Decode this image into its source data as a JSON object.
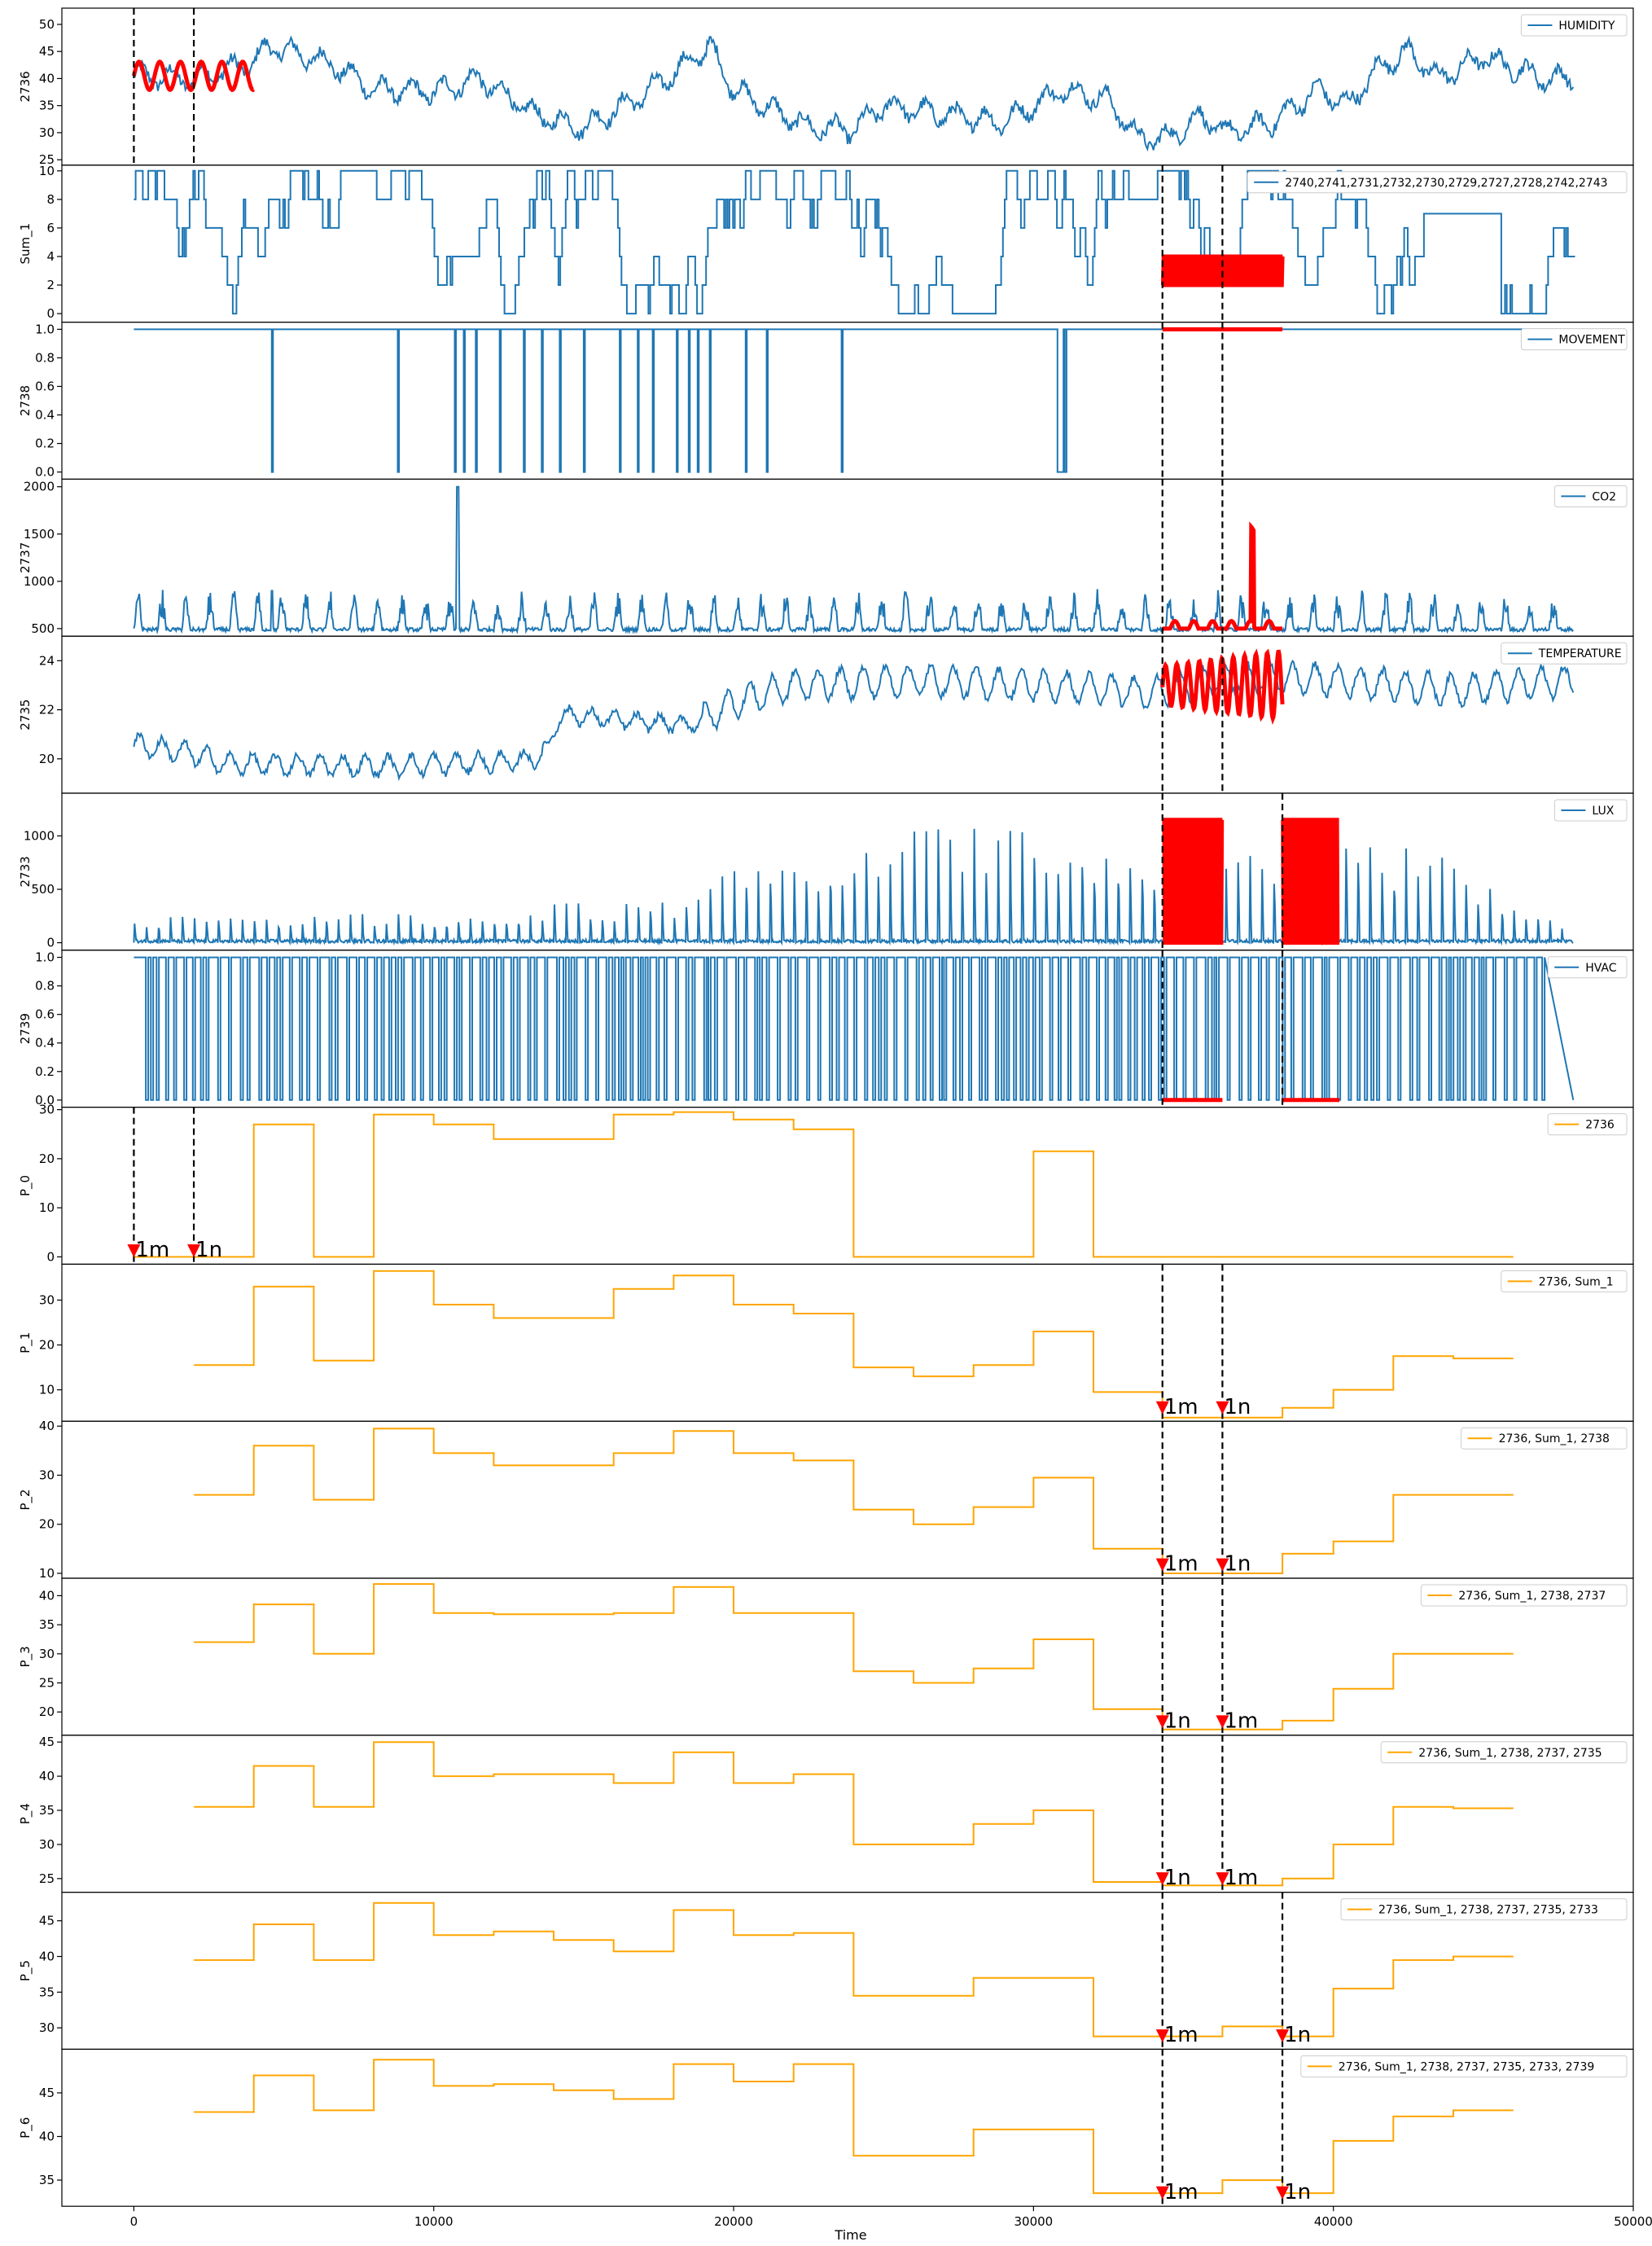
{
  "chart_data": {
    "type": "line",
    "xlabel": "Time",
    "xlim": [
      -2400,
      50000
    ],
    "xticks": [
      0,
      10000,
      20000,
      30000,
      40000,
      50000
    ],
    "xtick_labels": [
      "0",
      "10000",
      "20000",
      "30000",
      "40000",
      "50000"
    ],
    "colors": {
      "signal": "#1f77b4",
      "highlight": "#ff0000",
      "step": "#ffa500",
      "marker": "#ff0000",
      "frame": "#000000"
    },
    "panels": [
      {
        "ylabel": "2736",
        "legend": "HUMIDITY",
        "legend_loc": "upper right",
        "ylim": [
          24,
          53
        ],
        "yticks": [
          25,
          30,
          35,
          40,
          45,
          50
        ],
        "ytick_labels": [
          "25",
          "30",
          "35",
          "40",
          "45",
          "50"
        ],
        "signal": {
          "kind": "humidity"
        },
        "vlines": [
          0,
          2000
        ],
        "highlights": [
          [
            0,
            4000
          ]
        ]
      },
      {
        "ylabel": "Sum_1",
        "legend": "2740,2741,2731,2732,2730,2729,2727,2728,2742,2743",
        "legend_loc": "upper right",
        "ylim": [
          -0.6,
          10.4
        ],
        "yticks": [
          0,
          2,
          4,
          6,
          8,
          10
        ],
        "ytick_labels": [
          "0",
          "2",
          "4",
          "6",
          "8",
          "10"
        ],
        "signal": {
          "kind": "sum"
        },
        "vlines": [
          34300,
          36300
        ],
        "highlights": [
          [
            34300,
            38300
          ]
        ]
      },
      {
        "ylabel": "2738",
        "legend": "MOVEMENT",
        "legend_loc": "upper right",
        "ylim": [
          -0.05,
          1.05
        ],
        "yticks": [
          0,
          0.2,
          0.4,
          0.6,
          0.8,
          1.0
        ],
        "ytick_labels": [
          "0.0",
          "0.2",
          "0.4",
          "0.6",
          "0.8",
          "1.0"
        ],
        "signal": {
          "kind": "movement"
        },
        "vlines": [
          34300,
          36300
        ],
        "highlights": [
          [
            34300,
            38300
          ]
        ]
      },
      {
        "ylabel": "2737",
        "legend": "CO2",
        "legend_loc": "upper right",
        "ylim": [
          420,
          2080
        ],
        "yticks": [
          500,
          1000,
          1500,
          2000
        ],
        "ytick_labels": [
          "500",
          "1000",
          "1500",
          "2000"
        ],
        "signal": {
          "kind": "co2"
        },
        "vlines": [
          34300,
          36300
        ],
        "highlights": [
          [
            34300,
            38300
          ]
        ]
      },
      {
        "ylabel": "2735",
        "legend": "TEMPERATURE",
        "legend_loc": "upper right",
        "ylim": [
          18.6,
          25.0
        ],
        "yticks": [
          20,
          22,
          24
        ],
        "ytick_labels": [
          "20",
          "22",
          "24"
        ],
        "signal": {
          "kind": "temperature"
        },
        "vlines": [
          34300,
          36300
        ],
        "highlights": [
          [
            34300,
            38300
          ]
        ]
      },
      {
        "ylabel": "2733",
        "legend": "LUX",
        "legend_loc": "upper right",
        "ylim": [
          -70,
          1400
        ],
        "yticks": [
          0,
          500,
          1000
        ],
        "ytick_labels": [
          "0",
          "500",
          "1000"
        ],
        "signal": {
          "kind": "lux"
        },
        "vlines": [
          34300,
          38300
        ],
        "highlights": [
          [
            34300,
            36300
          ],
          [
            38300,
            40200
          ]
        ]
      },
      {
        "ylabel": "2739",
        "legend": "HVAC",
        "legend_loc": "upper right",
        "ylim": [
          -0.05,
          1.05
        ],
        "yticks": [
          0,
          0.2,
          0.4,
          0.6,
          0.8,
          1.0
        ],
        "ytick_labels": [
          "0.0",
          "0.2",
          "0.4",
          "0.6",
          "0.8",
          "1.0"
        ],
        "signal": {
          "kind": "hvac"
        },
        "vlines": [
          34300,
          38300
        ],
        "highlights": [
          [
            34300,
            36300
          ],
          [
            38300,
            40200
          ]
        ]
      },
      {
        "ylabel": "P_0",
        "legend": "2736",
        "legend_loc": "upper right",
        "ylim": [
          -1.5,
          30.5
        ],
        "yticks": [
          0,
          10,
          20,
          30
        ],
        "ytick_labels": [
          "0",
          "10",
          "20",
          "30"
        ],
        "steps": [
          [
            0,
            0
          ],
          [
            2000,
            0
          ],
          [
            4000,
            27
          ],
          [
            6000,
            0
          ],
          [
            8000,
            29
          ],
          [
            10000,
            27
          ],
          [
            12000,
            24
          ],
          [
            16000,
            29
          ],
          [
            18000,
            29.5
          ],
          [
            20000,
            28
          ],
          [
            22000,
            26
          ],
          [
            24000,
            0
          ],
          [
            30000,
            21.5
          ],
          [
            32000,
            0
          ],
          [
            46000,
            0
          ]
        ],
        "vlines": [
          0,
          2000
        ],
        "markers": [
          {
            "x": 0,
            "label": "1m"
          },
          {
            "x": 2000,
            "label": "1n"
          }
        ]
      },
      {
        "ylabel": "P_1",
        "legend": "2736, Sum_1",
        "legend_loc": "upper right",
        "ylim": [
          3,
          38
        ],
        "yticks": [
          10,
          20,
          30
        ],
        "ytick_labels": [
          "10",
          "20",
          "30"
        ],
        "steps": [
          [
            2000,
            15.5
          ],
          [
            4000,
            33
          ],
          [
            6000,
            16.5
          ],
          [
            8000,
            36.5
          ],
          [
            10000,
            29
          ],
          [
            12000,
            26
          ],
          [
            16000,
            32.5
          ],
          [
            18000,
            35.5
          ],
          [
            20000,
            29
          ],
          [
            22000,
            27
          ],
          [
            24000,
            15
          ],
          [
            26000,
            13
          ],
          [
            28000,
            15.5
          ],
          [
            30000,
            23
          ],
          [
            32000,
            9.5
          ],
          [
            34000,
            9.5
          ],
          [
            34300,
            3.8
          ],
          [
            38300,
            6
          ],
          [
            40000,
            10
          ],
          [
            42000,
            17.5
          ],
          [
            44000,
            17
          ],
          [
            46000,
            17
          ]
        ],
        "vlines": [
          34300,
          36300
        ],
        "markers": [
          {
            "x": 34300,
            "label": "1m"
          },
          {
            "x": 36300,
            "label": "1n"
          }
        ]
      },
      {
        "ylabel": "P_2",
        "legend": "2736, Sum_1, 2738",
        "legend_loc": "upper right",
        "ylim": [
          9,
          41
        ],
        "yticks": [
          10,
          20,
          30,
          40
        ],
        "ytick_labels": [
          "10",
          "20",
          "30",
          "40"
        ],
        "steps": [
          [
            2000,
            26
          ],
          [
            4000,
            36
          ],
          [
            6000,
            25
          ],
          [
            8000,
            39.5
          ],
          [
            10000,
            34.5
          ],
          [
            12000,
            32
          ],
          [
            16000,
            34.5
          ],
          [
            18000,
            39
          ],
          [
            20000,
            34.5
          ],
          [
            22000,
            33
          ],
          [
            24000,
            23
          ],
          [
            26000,
            20
          ],
          [
            28000,
            23.5
          ],
          [
            30000,
            29.5
          ],
          [
            32000,
            15
          ],
          [
            34000,
            15
          ],
          [
            34300,
            10
          ],
          [
            38300,
            14
          ],
          [
            40000,
            16.5
          ],
          [
            42000,
            26
          ],
          [
            44000,
            26
          ],
          [
            46000,
            26
          ]
        ],
        "vlines": [
          34300,
          36300
        ],
        "markers": [
          {
            "x": 34300,
            "label": "1m"
          },
          {
            "x": 36300,
            "label": "1n"
          }
        ]
      },
      {
        "ylabel": "P_3",
        "legend": "2736, Sum_1, 2738, 2737",
        "legend_loc": "upper right",
        "ylim": [
          16,
          43
        ],
        "yticks": [
          20,
          25,
          30,
          35,
          40
        ],
        "ytick_labels": [
          "20",
          "25",
          "30",
          "35",
          "40"
        ],
        "steps": [
          [
            2000,
            32
          ],
          [
            4000,
            38.5
          ],
          [
            6000,
            30
          ],
          [
            8000,
            42
          ],
          [
            10000,
            37
          ],
          [
            12000,
            36.8
          ],
          [
            16000,
            37
          ],
          [
            18000,
            41.5
          ],
          [
            20000,
            37
          ],
          [
            22000,
            37
          ],
          [
            24000,
            27
          ],
          [
            26000,
            25
          ],
          [
            28000,
            27.5
          ],
          [
            30000,
            32.5
          ],
          [
            32000,
            20.5
          ],
          [
            34000,
            20.5
          ],
          [
            34300,
            17
          ],
          [
            38300,
            18.5
          ],
          [
            40000,
            24
          ],
          [
            42000,
            30
          ],
          [
            44000,
            30
          ],
          [
            46000,
            30
          ]
        ],
        "vlines": [
          34300,
          36300
        ],
        "markers": [
          {
            "x": 34300,
            "label": "1n"
          },
          {
            "x": 36300,
            "label": "1m"
          }
        ]
      },
      {
        "ylabel": "P_4",
        "legend": "2736, Sum_1, 2738, 2737, 2735",
        "legend_loc": "upper right",
        "ylim": [
          23,
          46
        ],
        "yticks": [
          25,
          30,
          35,
          40,
          45
        ],
        "ytick_labels": [
          "25",
          "30",
          "35",
          "40",
          "45"
        ],
        "steps": [
          [
            2000,
            35.5
          ],
          [
            4000,
            41.5
          ],
          [
            6000,
            35.5
          ],
          [
            8000,
            45
          ],
          [
            10000,
            40
          ],
          [
            12000,
            40.3
          ],
          [
            16000,
            39
          ],
          [
            18000,
            43.5
          ],
          [
            20000,
            39
          ],
          [
            22000,
            40.3
          ],
          [
            24000,
            30
          ],
          [
            28000,
            33
          ],
          [
            30000,
            35
          ],
          [
            32000,
            24.5
          ],
          [
            34000,
            24.5
          ],
          [
            34300,
            24
          ],
          [
            38300,
            25
          ],
          [
            40000,
            30
          ],
          [
            42000,
            35.5
          ],
          [
            44000,
            35.3
          ],
          [
            46000,
            35.3
          ]
        ],
        "vlines": [
          34300,
          36300
        ],
        "markers": [
          {
            "x": 34300,
            "label": "1n"
          },
          {
            "x": 36300,
            "label": "1m"
          }
        ]
      },
      {
        "ylabel": "P_5",
        "legend": "2736, Sum_1, 2738, 2737, 2735, 2733",
        "legend_loc": "upper right",
        "ylim": [
          27,
          49
        ],
        "yticks": [
          30,
          35,
          40,
          45
        ],
        "ytick_labels": [
          "30",
          "35",
          "40",
          "45"
        ],
        "steps": [
          [
            2000,
            39.5
          ],
          [
            4000,
            44.5
          ],
          [
            6000,
            39.5
          ],
          [
            8000,
            47.5
          ],
          [
            10000,
            43
          ],
          [
            12000,
            43.5
          ],
          [
            14000,
            42.3
          ],
          [
            16000,
            40.7
          ],
          [
            18000,
            46.5
          ],
          [
            20000,
            43
          ],
          [
            22000,
            43.3
          ],
          [
            24000,
            34.5
          ],
          [
            28000,
            37
          ],
          [
            30000,
            37
          ],
          [
            32000,
            28.8
          ],
          [
            34000,
            28.8
          ],
          [
            36300,
            30.2
          ],
          [
            38300,
            28.8
          ],
          [
            40000,
            35.5
          ],
          [
            42000,
            39.5
          ],
          [
            44000,
            40
          ],
          [
            46000,
            40
          ]
        ],
        "vlines": [
          34300,
          38300
        ],
        "markers": [
          {
            "x": 34300,
            "label": "1m"
          },
          {
            "x": 38300,
            "label": "1n"
          }
        ]
      },
      {
        "ylabel": "P_6",
        "legend": "2736, Sum_1, 2738, 2737, 2735, 2733, 2739",
        "legend_loc": "upper right",
        "ylim": [
          32,
          50
        ],
        "yticks": [
          35,
          40,
          45
        ],
        "ytick_labels": [
          "35",
          "40",
          "45"
        ],
        "steps": [
          [
            2000,
            42.8
          ],
          [
            4000,
            47
          ],
          [
            6000,
            43
          ],
          [
            8000,
            48.8
          ],
          [
            10000,
            45.8
          ],
          [
            12000,
            46
          ],
          [
            14000,
            45.3
          ],
          [
            16000,
            44.3
          ],
          [
            18000,
            48.3
          ],
          [
            20000,
            46.3
          ],
          [
            22000,
            48.3
          ],
          [
            24000,
            37.8
          ],
          [
            28000,
            40.8
          ],
          [
            32000,
            33.5
          ],
          [
            34000,
            33.5
          ],
          [
            36300,
            35
          ],
          [
            38300,
            33.5
          ],
          [
            40000,
            39.5
          ],
          [
            42000,
            42.3
          ],
          [
            44000,
            43
          ],
          [
            46000,
            43
          ]
        ],
        "vlines": [
          34300,
          38300
        ],
        "markers": [
          {
            "x": 34300,
            "label": "1m"
          },
          {
            "x": 38300,
            "label": "1n"
          }
        ]
      }
    ]
  }
}
